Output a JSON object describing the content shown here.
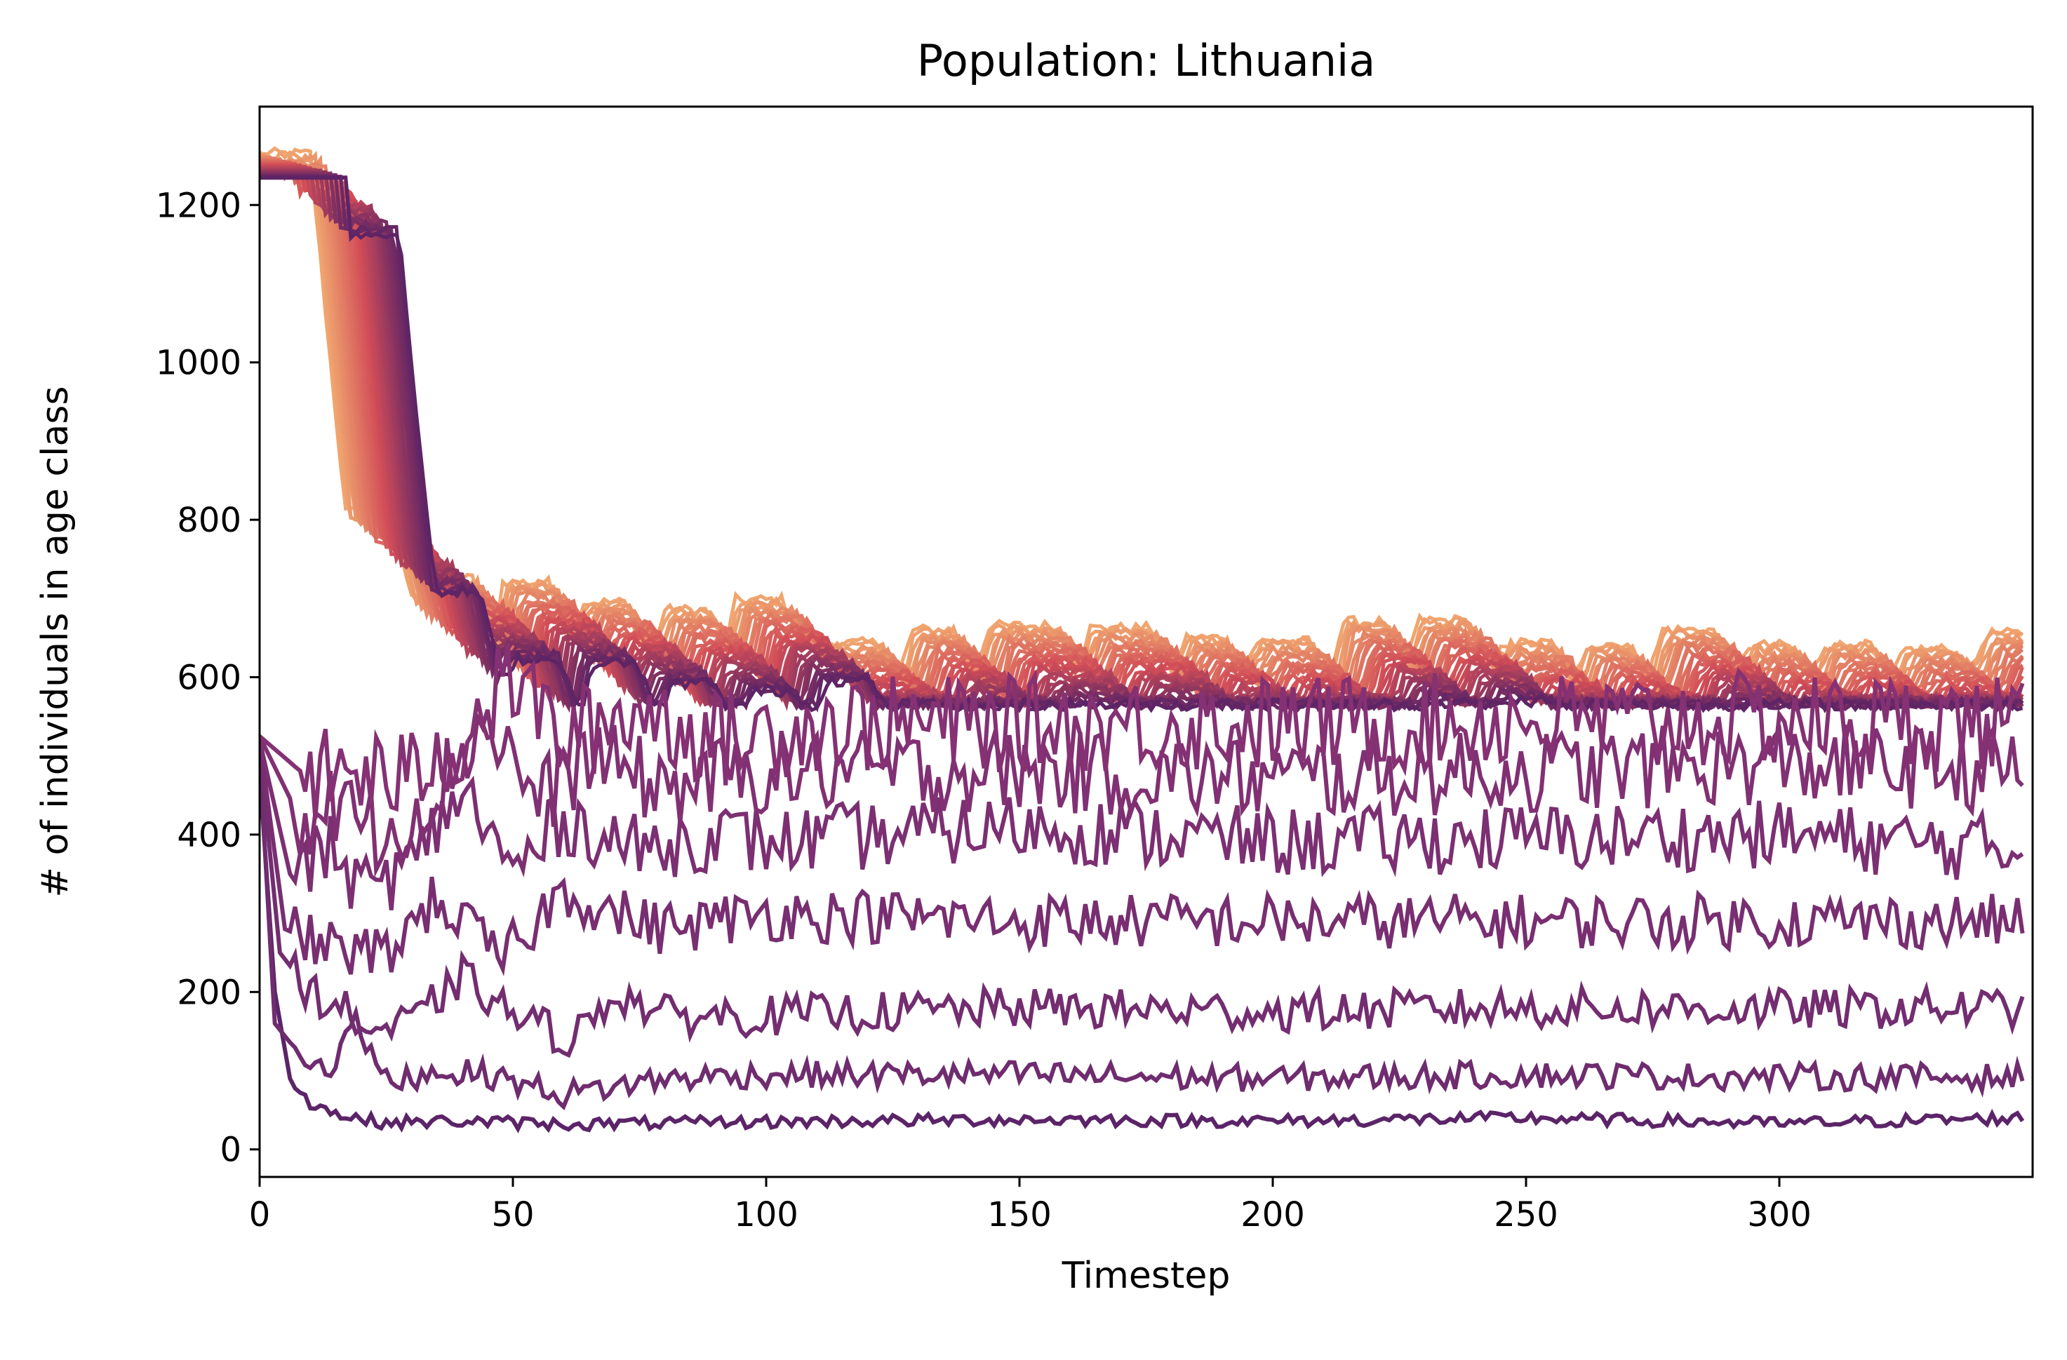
{
  "chart_data": {
    "type": "line",
    "title": "Population: Lithuania",
    "xlabel": "Timestep",
    "ylabel": "# of individuals in age class",
    "xlim": [
      0,
      350
    ],
    "ylim": [
      -35,
      1325
    ],
    "xticks": [
      0,
      50,
      100,
      150,
      200,
      250,
      300
    ],
    "yticks": [
      0,
      200,
      400,
      600,
      800,
      1000,
      1200
    ],
    "grid": false,
    "legend": "none",
    "colormap": "flare",
    "colors": {
      "light": "#f0a56f",
      "mid": "#d14d57",
      "dark": "#5d2466",
      "axis": "#000000",
      "background": "#ffffff"
    },
    "series_count": 40,
    "lower_series": [
      {
        "class": 1,
        "x": [
          0,
          3,
          6,
          10,
          14,
          18,
          25,
          40,
          60,
          100,
          150,
          200,
          250,
          300,
          348
        ],
        "y": [
          480,
          200,
          90,
          60,
          48,
          40,
          34,
          36,
          32,
          35,
          38,
          36,
          40,
          33,
          40
        ]
      },
      {
        "class": 2,
        "x": [
          0,
          3,
          8,
          14,
          18,
          25,
          35,
          45,
          60,
          80,
          100,
          150,
          200,
          250,
          300,
          348
        ],
        "y": [
          500,
          160,
          120,
          100,
          170,
          85,
          100,
          95,
          70,
          90,
          95,
          95,
          90,
          95,
          92,
          92
        ]
      },
      {
        "class": 3,
        "x": [
          0,
          4,
          10,
          16,
          22,
          30,
          40,
          50,
          62,
          70,
          80,
          100,
          150,
          200,
          250,
          300,
          348
        ],
        "y": [
          510,
          250,
          200,
          180,
          150,
          160,
          220,
          170,
          140,
          200,
          170,
          170,
          180,
          175,
          180,
          178,
          180
        ]
      },
      {
        "class": 4,
        "x": [
          0,
          5,
          12,
          18,
          25,
          35,
          48,
          60,
          70,
          80,
          100,
          150,
          200,
          250,
          300,
          348
        ],
        "y": [
          520,
          280,
          260,
          250,
          250,
          320,
          240,
          330,
          300,
          280,
          300,
          290,
          290,
          290,
          290,
          290
        ]
      },
      {
        "class": 5,
        "x": [
          0,
          6,
          14,
          20,
          30,
          40,
          50,
          60,
          75,
          90,
          100,
          150,
          200,
          250,
          300,
          348
        ],
        "y": [
          520,
          350,
          380,
          330,
          360,
          460,
          350,
          420,
          380,
          400,
          390,
          410,
          390,
          395,
          400,
          380
        ]
      },
      {
        "class": 6,
        "x": [
          0,
          8,
          16,
          24,
          34,
          45,
          55,
          65,
          80,
          100,
          150,
          200,
          250,
          300,
          348
        ],
        "y": [
          525,
          420,
          440,
          400,
          450,
          550,
          440,
          500,
          460,
          480,
          480,
          470,
          480,
          490,
          480
        ]
      },
      {
        "class": 7,
        "x": [
          0,
          10,
          18,
          28,
          40,
          50,
          60,
          75,
          90,
          110,
          150,
          200,
          250,
          300,
          348
        ],
        "y": [
          525,
          470,
          480,
          470,
          520,
          600,
          520,
          560,
          520,
          540,
          540,
          540,
          545,
          545,
          540
        ]
      }
    ],
    "upper_envelope": {
      "x": [
        0,
        10,
        14,
        17,
        26,
        30,
        33,
        42,
        46,
        48,
        57,
        61,
        64,
        72,
        77,
        80,
        88,
        92,
        94,
        103,
        107,
        110,
        122,
        126,
        129,
        137,
        141,
        144,
        157,
        161,
        164,
        176,
        180,
        183,
        190,
        194,
        197,
        207,
        211,
        214,
        222,
        226,
        229,
        238,
        243,
        246,
        255,
        259,
        262,
        270,
        274,
        277,
        287,
        291,
        294,
        302,
        306,
        309,
        318,
        322,
        325,
        334,
        338,
        341,
        348
      ],
      "y": [
        1265,
        1265,
        1000,
        810,
        810,
        700,
        725,
        725,
        640,
        720,
        720,
        650,
        695,
        695,
        625,
        685,
        685,
        640,
        698,
        698,
        650,
        643,
        643,
        600,
        660,
        660,
        600,
        665,
        665,
        610,
        662,
        662,
        610,
        650,
        650,
        610,
        645,
        645,
        600,
        670,
        670,
        620,
        672,
        672,
        615,
        643,
        643,
        590,
        640,
        640,
        600,
        660,
        660,
        590,
        640,
        640,
        600,
        640,
        640,
        600,
        635,
        635,
        610,
        655,
        655
      ]
    }
  }
}
